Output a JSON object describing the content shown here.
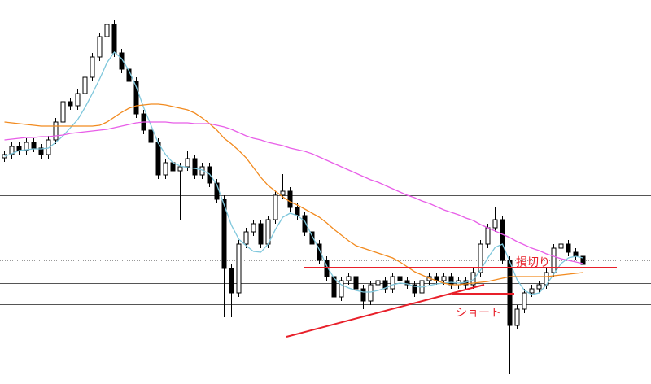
{
  "chart_data": {
    "type": "candlestick",
    "ylim": [
      0,
      472
    ],
    "up_color": "#ffffff",
    "down_color": "#000000",
    "open": [
      278,
      282,
      292,
      287,
      297,
      290,
      282,
      300,
      322,
      347,
      342,
      357,
      377,
      402,
      427,
      442,
      407,
      387,
      372,
      332,
      312,
      297,
      257,
      272,
      262,
      267,
      277,
      257,
      267,
      247,
      227,
      142,
      112,
      172,
      187,
      197,
      172,
      202,
      232,
      237,
      217,
      207,
      187,
      172,
      152,
      132,
      107,
      127,
      132,
      117,
      102,
      122,
      127,
      117,
      132,
      127,
      122,
      112,
      127,
      132,
      127,
      132,
      122,
      127,
      122,
      137,
      172,
      192,
      202,
      152,
      72,
      92,
      112,
      117,
      122,
      137,
      167,
      172,
      162,
      157
    ],
    "high": [
      287,
      297,
      297,
      302,
      302,
      295,
      305,
      327,
      352,
      352,
      362,
      382,
      407,
      432,
      462,
      447,
      412,
      392,
      377,
      337,
      317,
      302,
      277,
      277,
      272,
      287,
      282,
      272,
      272,
      252,
      232,
      147,
      177,
      192,
      202,
      202,
      207,
      237,
      258,
      242,
      222,
      212,
      192,
      177,
      157,
      137,
      132,
      137,
      137,
      122,
      127,
      132,
      132,
      137,
      137,
      132,
      127,
      132,
      137,
      137,
      137,
      137,
      132,
      132,
      142,
      177,
      197,
      217,
      207,
      157,
      97,
      117,
      122,
      127,
      142,
      172,
      177,
      177,
      167,
      162
    ],
    "low": [
      273,
      277,
      282,
      282,
      285,
      277,
      277,
      295,
      317,
      337,
      337,
      352,
      372,
      397,
      422,
      402,
      382,
      367,
      327,
      307,
      292,
      252,
      252,
      257,
      202,
      262,
      252,
      252,
      242,
      222,
      82,
      82,
      107,
      167,
      182,
      167,
      167,
      197,
      227,
      212,
      202,
      182,
      167,
      147,
      127,
      97,
      102,
      122,
      112,
      92,
      97,
      117,
      112,
      112,
      122,
      117,
      107,
      107,
      122,
      122,
      122,
      117,
      117,
      117,
      117,
      132,
      167,
      187,
      147,
      12,
      67,
      87,
      107,
      112,
      117,
      132,
      162,
      157,
      152,
      142
    ],
    "close": [
      282,
      292,
      287,
      297,
      290,
      282,
      300,
      322,
      347,
      342,
      357,
      377,
      402,
      427,
      442,
      407,
      387,
      372,
      332,
      312,
      297,
      257,
      272,
      262,
      267,
      277,
      257,
      267,
      247,
      227,
      142,
      112,
      172,
      187,
      197,
      172,
      202,
      232,
      237,
      217,
      207,
      187,
      172,
      152,
      132,
      107,
      127,
      132,
      117,
      102,
      122,
      127,
      117,
      132,
      127,
      122,
      112,
      127,
      132,
      127,
      132,
      122,
      127,
      122,
      137,
      172,
      192,
      202,
      152,
      72,
      92,
      112,
      117,
      122,
      137,
      167,
      172,
      162,
      157,
      147
    ],
    "series": [
      {
        "color": "#7fc7dc",
        "values": [
          280,
          283,
          287,
          288,
          289,
          289,
          290,
          297,
          305,
          315,
          325,
          340,
          357,
          375,
          395,
          408,
          400,
          385,
          365,
          340,
          318,
          296,
          282,
          272,
          268,
          266,
          265,
          263,
          258,
          245,
          220,
          195,
          178,
          170,
          163,
          162,
          172,
          190,
          205,
          210,
          207,
          200,
          182,
          165,
          145,
          130,
          122,
          118,
          115,
          113,
          113,
          115,
          118,
          122,
          124,
          123,
          120,
          119,
          121,
          123,
          124,
          125,
          124,
          125,
          128,
          140,
          155,
          168,
          172,
          150,
          128,
          115,
          110,
          112,
          122,
          135,
          148,
          155,
          157,
          155
        ]
      },
      {
        "color": "#f28a1e",
        "values": [
          322,
          321,
          320,
          319,
          318,
          317,
          317,
          317,
          317,
          317,
          317,
          317,
          317,
          318,
          322,
          328,
          334,
          339,
          342,
          343,
          344,
          344,
          343,
          341,
          339,
          337,
          333,
          327,
          320,
          312,
          302,
          295,
          287,
          278,
          266,
          254,
          244,
          237,
          230,
          224,
          220,
          215,
          210,
          205,
          198,
          190,
          183,
          176,
          170,
          167,
          164,
          161,
          158,
          155,
          150,
          144,
          138,
          134,
          130,
          127,
          124,
          122,
          122,
          123,
          124,
          125,
          126,
          128,
          130,
          132,
          132,
          132,
          132,
          132,
          132,
          133,
          134,
          135,
          136,
          137
        ]
      },
      {
        "color": "#e85ee8",
        "values": [
          300,
          301,
          302,
          303,
          303,
          304,
          304,
          305,
          306,
          308,
          309,
          310,
          311,
          312,
          313,
          315,
          317,
          319,
          321,
          322,
          322,
          322,
          322,
          321,
          321,
          321,
          320,
          320,
          320,
          318,
          316,
          313,
          309,
          305,
          302,
          300,
          297,
          295,
          293,
          290,
          288,
          286,
          283,
          279,
          275,
          271,
          267,
          263,
          259,
          255,
          251,
          248,
          244,
          240,
          236,
          232,
          229,
          225,
          222,
          218,
          214,
          211,
          208,
          204,
          201,
          196,
          192,
          188,
          184,
          180,
          175,
          171,
          167,
          164,
          160,
          157,
          154,
          152,
          150,
          148
        ]
      }
    ],
    "annotations": [
      "損切り",
      "ショート"
    ]
  }
}
